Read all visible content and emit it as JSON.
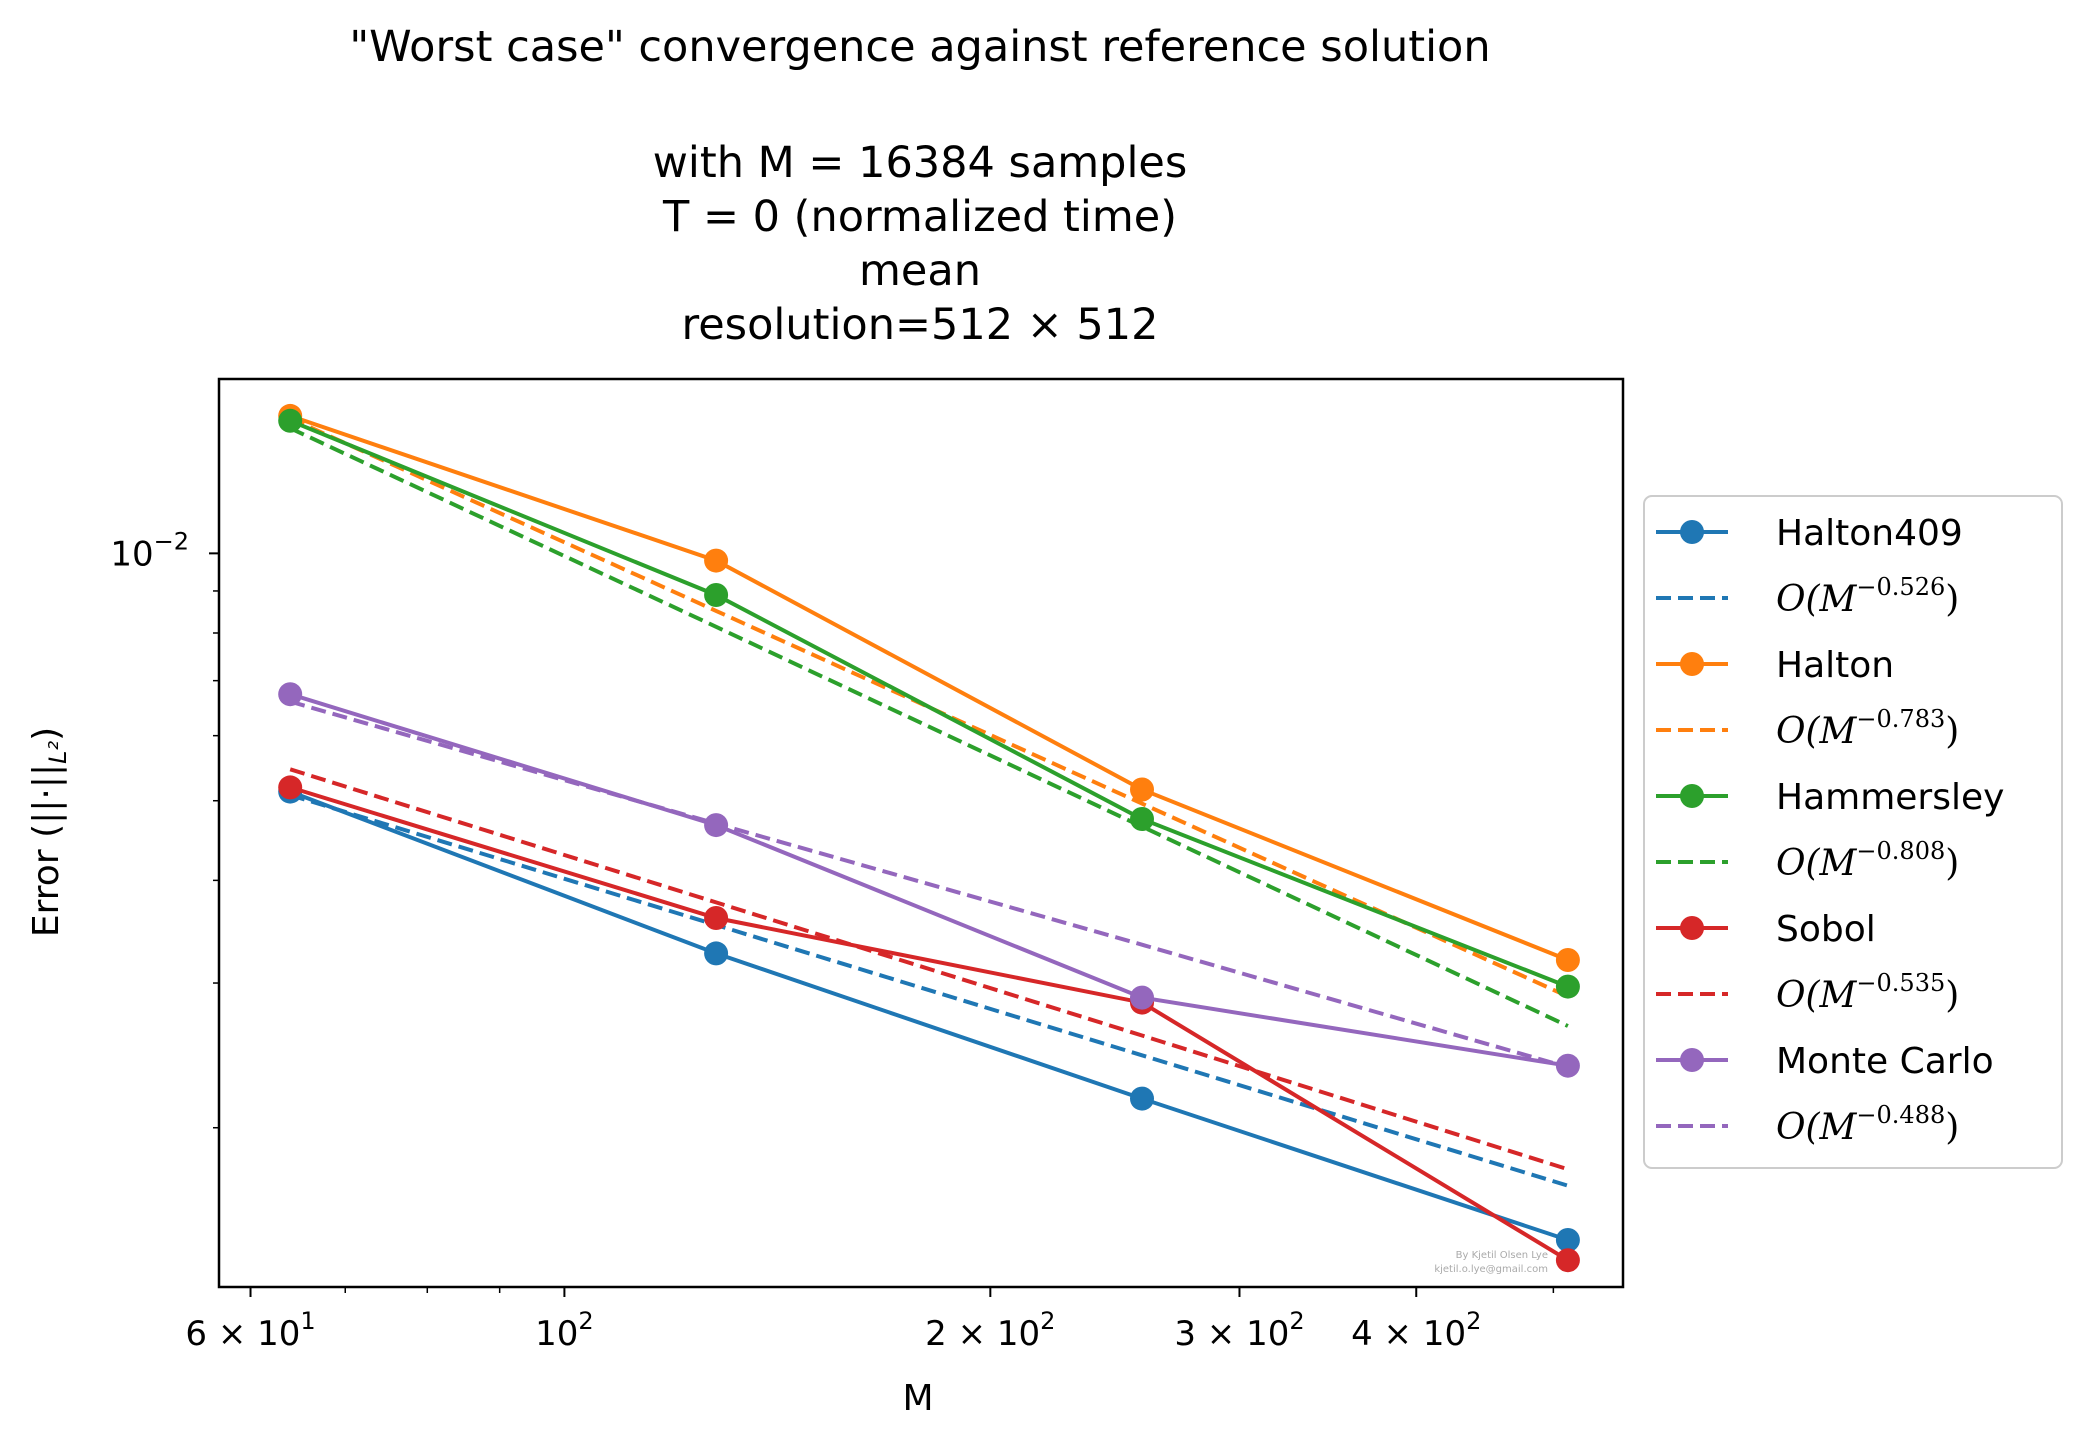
{
  "chart_data": {
    "type": "line",
    "title_lines": [
      "\"Worst case\" convergence against reference solution",
      "with M = 16384 samples",
      "T = 0 (normalized time)",
      "mean",
      "resolution=512 × 512"
    ],
    "xlabel": "M",
    "ylabel": "Error (||·||",
    "ylabel_sub": "L²",
    "ylabel_close": ")",
    "x_scale": "log",
    "y_scale": "log",
    "xlim": [
      57,
      560
    ],
    "ylim": [
      0.00128,
      0.0163
    ],
    "x_ticks": [
      {
        "value": 60,
        "mant": "6 × 10",
        "exp": "1"
      },
      {
        "value": 100,
        "mant": "10",
        "exp": "2"
      },
      {
        "value": 200,
        "mant": "2 × 10",
        "exp": "2"
      },
      {
        "value": 300,
        "mant": "3 × 10",
        "exp": "2"
      },
      {
        "value": 400,
        "mant": "4 × 10",
        "exp": "2"
      }
    ],
    "y_ticks": [
      {
        "value": 0.01,
        "mant": "10",
        "exp": "−2"
      }
    ],
    "x": [
      64,
      128,
      256,
      512
    ],
    "series": [
      {
        "name": "Halton409",
        "color": "#1f77b4",
        "values": [
          0.00513,
          0.00326,
          0.00217,
          0.00146
        ],
        "fit_label": "O(M",
        "fit_exp": "−0.526",
        "fit_values": [
          0.00508,
          0.00353,
          0.00245,
          0.0017
        ]
      },
      {
        "name": "Halton",
        "color": "#ff7f0e",
        "values": [
          0.0147,
          0.0098,
          0.00516,
          0.0032
        ],
        "fit_label": "O(M",
        "fit_exp": "−0.783",
        "fit_values": [
          0.0146,
          0.00851,
          0.00496,
          0.00289
        ]
      },
      {
        "name": "Hammersley",
        "color": "#2ca02c",
        "values": [
          0.0145,
          0.0089,
          0.00475,
          0.00297
        ],
        "fit_label": "O(M",
        "fit_exp": "−0.808",
        "fit_values": [
          0.0142,
          0.00814,
          0.00465,
          0.00266
        ]
      },
      {
        "name": "Sobol",
        "color": "#d62728",
        "values": [
          0.00519,
          0.0036,
          0.00284,
          0.00138
        ],
        "fit_label": "O(M",
        "fit_exp": "−0.535",
        "fit_values": [
          0.00546,
          0.00376,
          0.00259,
          0.00178
        ]
      },
      {
        "name": "Monte Carlo",
        "color": "#9467bd",
        "values": [
          0.00674,
          0.00467,
          0.00288,
          0.00238
        ],
        "fit_label": "O(M",
        "fit_exp": "−0.488",
        "fit_values": [
          0.0066,
          0.00469,
          0.00334,
          0.00237
        ]
      }
    ],
    "legend_position": "outside-right",
    "grid": false
  },
  "watermark": {
    "line1": "By Kjetil Olsen Lye",
    "line2": "kjetil.o.lye@gmail.com"
  }
}
